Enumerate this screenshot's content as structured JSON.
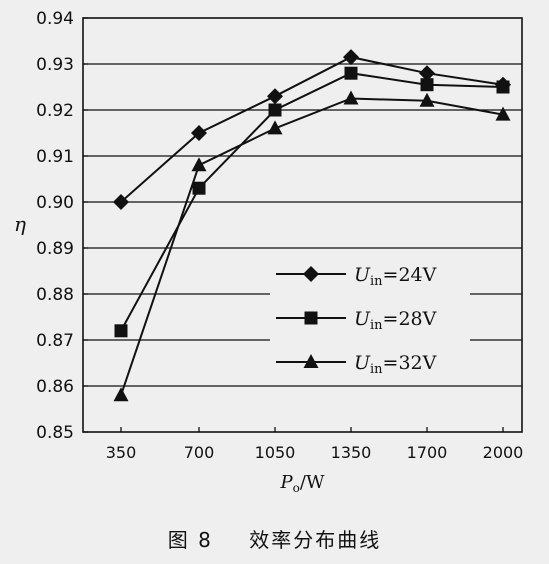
{
  "caption": {
    "number": "图 8",
    "text": "效率分布曲线"
  },
  "chart_data": {
    "type": "line",
    "title": "",
    "xlabel": {
      "main": "P",
      "sub": "o",
      "rest": "/W"
    },
    "ylabel": "η",
    "categories": [
      "350",
      "700",
      "1050",
      "1350",
      "1700",
      "2000"
    ],
    "ylim": [
      0.85,
      0.94
    ],
    "yticks": [
      "0.85",
      "0.86",
      "0.87",
      "0.88",
      "0.89",
      "0.90",
      "0.91",
      "0.92",
      "0.93",
      "0.94"
    ],
    "grid": "horizontal",
    "legend_position": "center-right",
    "series": [
      {
        "name": "Uin=24V",
        "label_main": "U",
        "label_sub": "in",
        "label_rest": "=24V",
        "marker": "diamond",
        "values": [
          0.9,
          0.915,
          0.923,
          0.9315,
          0.928,
          0.9255
        ]
      },
      {
        "name": "Uin=28V",
        "label_main": "U",
        "label_sub": "in",
        "label_rest": "=28V",
        "marker": "square",
        "values": [
          0.872,
          0.903,
          0.92,
          0.928,
          0.9255,
          0.925
        ]
      },
      {
        "name": "Uin=32V",
        "label_main": "U",
        "label_sub": "in",
        "label_rest": "=32V",
        "marker": "triangle",
        "values": [
          0.858,
          0.908,
          0.916,
          0.9225,
          0.922,
          0.919
        ]
      }
    ],
    "colors": {
      "line": "#111111",
      "grid": "#111111",
      "background": "#efefef"
    }
  }
}
